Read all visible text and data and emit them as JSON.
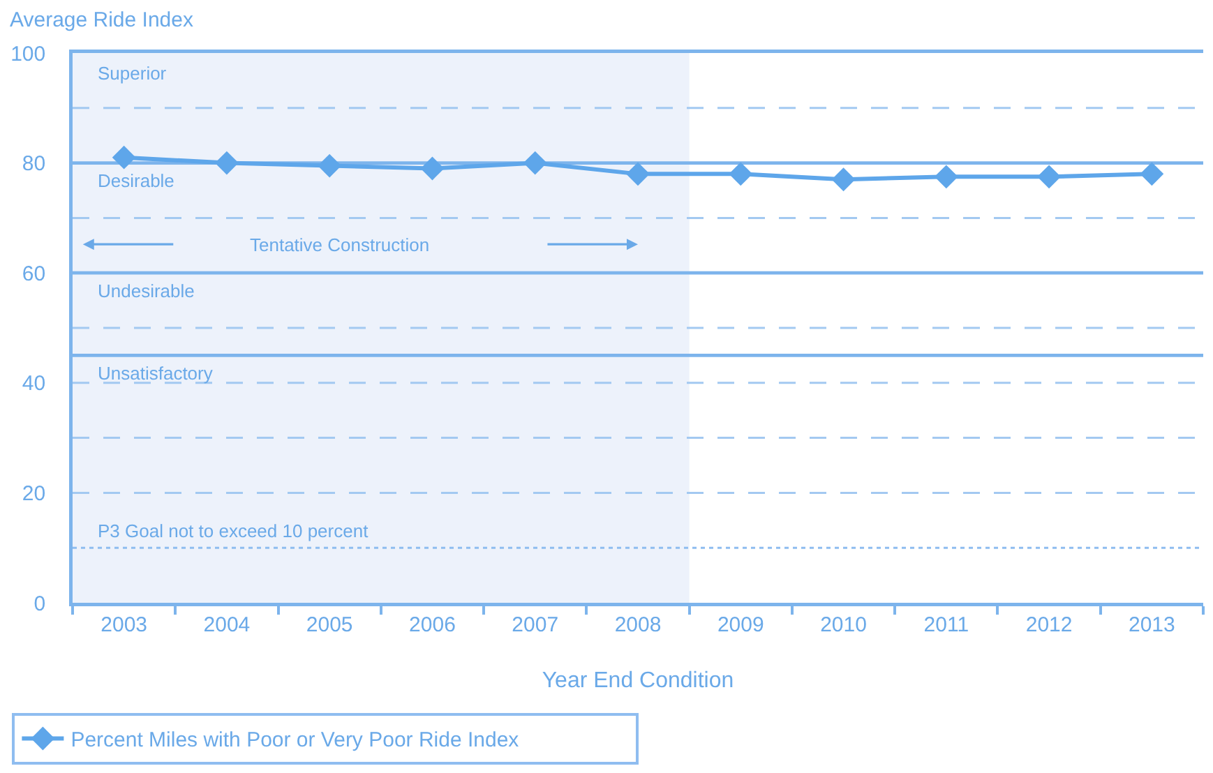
{
  "chart_data": {
    "type": "line",
    "xlabel": "Year End Condition",
    "ylabel": "Average Ride Index",
    "categories": [
      "2003",
      "2004",
      "2005",
      "2006",
      "2007",
      "2008",
      "2009",
      "2010",
      "2011",
      "2012",
      "2013"
    ],
    "series": [
      {
        "name": "Percent Miles with Poor or Very Poor Ride Index",
        "color": "#5ea6ea",
        "values": [
          81,
          80,
          79.5,
          79,
          80,
          78,
          78,
          77,
          77.5,
          77.5,
          78
        ]
      }
    ],
    "ylim": [
      0,
      100
    ],
    "yticks": [
      0,
      20,
      40,
      60,
      80,
      100
    ],
    "marker": "diamond",
    "line_style": "solid",
    "legend": "bottom left",
    "annotations": [
      "Superior"
    ],
    "ref_lines": [
      {
        "axis": "y",
        "value": 90,
        "line_style": "dashed",
        "color": "#a3c9f1"
      },
      {
        "axis": "y",
        "value": 80,
        "label": "Desirable",
        "line_style": "solid",
        "color": "#7db4ec"
      },
      {
        "axis": "y",
        "value": 70,
        "line_style": "dashed",
        "color": "#a3c9f1"
      },
      {
        "axis": "y",
        "value": 60,
        "label": "Undesirable",
        "line_style": "solid",
        "color": "#7db4ec"
      },
      {
        "axis": "y",
        "value": 50,
        "line_style": "dashed",
        "color": "#a3c9f1"
      },
      {
        "axis": "y",
        "value": 45,
        "label": "Unsatisfactory",
        "line_style": "solid",
        "color": "#7db4ec"
      },
      {
        "axis": "y",
        "value": 40,
        "line_style": "dashed",
        "color": "#a3c9f1"
      },
      {
        "axis": "y",
        "value": 30,
        "line_style": "dashed",
        "color": "#a3c9f1"
      },
      {
        "axis": "y",
        "value": 20,
        "line_style": "dashed",
        "color": "#a3c9f1"
      },
      {
        "axis": "y",
        "value": 10,
        "label": "P3 Goal not to exceed 10 percent",
        "line_style": "dotted",
        "color": "#8fbdf0"
      }
    ],
    "bands": [
      {
        "axis": "x",
        "from": "2003",
        "to": "2008",
        "label": "Tentative Construction",
        "color": "#edf2fb"
      }
    ]
  }
}
